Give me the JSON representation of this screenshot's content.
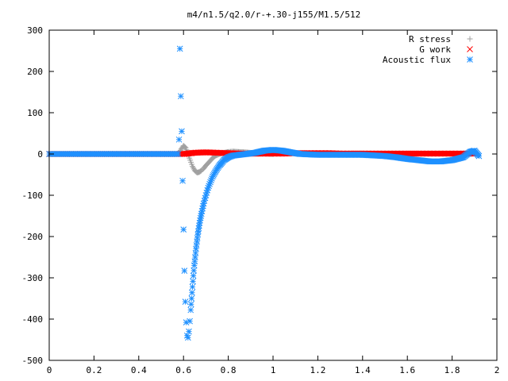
{
  "chart_data": {
    "type": "scatter",
    "title": "m4/n1.5/q2.0/r-+.30-j155/M1.5/512",
    "xlabel": "",
    "ylabel": "",
    "xlim": [
      0,
      2
    ],
    "ylim": [
      -500,
      300
    ],
    "grid": false,
    "legend_position": "top-right",
    "xticks": [
      "0",
      "0.2",
      "0.4",
      "0.6",
      "0.8",
      "1",
      "1.2",
      "1.4",
      "1.6",
      "1.8",
      "2"
    ],
    "yticks": [
      "300",
      "200",
      "100",
      "0",
      "-100",
      "-200",
      "-300",
      "-400",
      "-500"
    ],
    "series": [
      {
        "name": "R stress",
        "marker": "plus",
        "color": "#a0a0a0",
        "x": [
          0.57,
          0.58,
          0.59,
          0.6,
          0.61,
          0.62,
          0.63,
          0.64,
          0.65,
          0.66,
          0.67,
          0.68,
          0.69,
          0.7,
          0.71,
          0.72,
          0.73,
          0.74,
          0.76,
          0.78,
          0.8,
          0.82,
          0.85,
          0.88,
          0.92,
          0.96,
          1.0
        ],
        "y": [
          0,
          3,
          12,
          20,
          15,
          0,
          -15,
          -30,
          -40,
          -45,
          -44,
          -40,
          -35,
          -28,
          -22,
          -16,
          -10,
          -5,
          0,
          3,
          5,
          6,
          5,
          4,
          2,
          1,
          0
        ]
      },
      {
        "name": "G work",
        "marker": "cross",
        "color": "#ff0000",
        "x": [
          0.6,
          0.65,
          0.7,
          0.75,
          0.8,
          0.85,
          0.9,
          0.95,
          1.0,
          1.05,
          1.1,
          1.15,
          1.2,
          1.25,
          1.3,
          1.35,
          1.4,
          1.45,
          1.5,
          1.55,
          1.6,
          1.65,
          1.7,
          1.75,
          1.8,
          1.85,
          1.9
        ],
        "y": [
          0,
          3,
          4,
          3,
          2,
          1,
          1,
          1,
          1,
          1,
          2,
          2,
          2,
          2,
          1,
          1,
          1,
          1,
          1,
          1,
          1,
          1,
          1,
          1,
          1,
          1,
          1
        ]
      },
      {
        "name": "Acoustic flux",
        "marker": "star",
        "color": "#1e90ff",
        "x": [
          0.58,
          0.584,
          0.588,
          0.592,
          0.596,
          0.6,
          0.604,
          0.608,
          0.612,
          0.616,
          0.62,
          0.624,
          0.628,
          0.632,
          0.636,
          0.64,
          0.644,
          0.648,
          0.652,
          0.656,
          0.66,
          0.664,
          0.668,
          0.672,
          0.676,
          0.68,
          0.685,
          0.69,
          0.7,
          0.71,
          0.72,
          0.73,
          0.74,
          0.75,
          0.76,
          0.77,
          0.78,
          0.8,
          0.82,
          0.85,
          0.88,
          0.92,
          0.96,
          1.0,
          1.04,
          1.08,
          1.12,
          1.16,
          1.2,
          1.3,
          1.4,
          1.5,
          1.55,
          1.6,
          1.65,
          1.7,
          1.75,
          1.8,
          1.85,
          1.88,
          1.9,
          1.92
        ],
        "y": [
          35,
          255,
          140,
          55,
          -65,
          -183,
          -283,
          -358,
          -408,
          -440,
          -445,
          -430,
          -405,
          -378,
          -350,
          -322,
          -295,
          -270,
          -250,
          -230,
          -212,
          -195,
          -180,
          -167,
          -155,
          -145,
          -132,
          -120,
          -100,
          -82,
          -68,
          -55,
          -45,
          -36,
          -28,
          -22,
          -15,
          -8,
          -4,
          -2,
          0,
          3,
          8,
          10,
          8,
          4,
          0,
          -1,
          -2,
          -2,
          -2,
          -5,
          -8,
          -12,
          -15,
          -18,
          -18,
          -15,
          -8,
          5,
          8,
          -5
        ]
      }
    ]
  }
}
